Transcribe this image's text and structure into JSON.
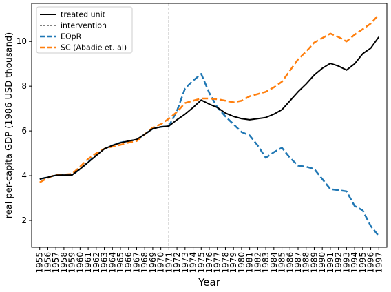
{
  "chart_data": {
    "type": "line",
    "xlabel": "Year",
    "ylabel": "real per-capita GDP (1986 USD thousand)",
    "xlim": [
      1954,
      1998
    ],
    "ylim": [
      0.8,
      11.7
    ],
    "yticks": [
      2,
      4,
      6,
      8,
      10
    ],
    "x": [
      1955,
      1956,
      1957,
      1958,
      1959,
      1960,
      1961,
      1962,
      1963,
      1964,
      1965,
      1966,
      1967,
      1968,
      1969,
      1970,
      1971,
      1972,
      1973,
      1974,
      1975,
      1976,
      1977,
      1978,
      1979,
      1980,
      1981,
      1982,
      1983,
      1984,
      1985,
      1986,
      1987,
      1988,
      1989,
      1990,
      1991,
      1992,
      1993,
      1994,
      1995,
      1996,
      1997
    ],
    "intervention_year": 1971,
    "legend_position": "top-left",
    "series": [
      {
        "name": "treated unit",
        "color": "#000000",
        "style": "solid",
        "values": [
          3.85,
          3.93,
          4.02,
          4.03,
          4.03,
          4.3,
          4.6,
          4.9,
          5.2,
          5.35,
          5.47,
          5.55,
          5.62,
          5.85,
          6.1,
          6.18,
          6.22,
          6.5,
          6.75,
          7.05,
          7.38,
          7.2,
          7.05,
          6.8,
          6.65,
          6.55,
          6.5,
          6.55,
          6.6,
          6.75,
          6.95,
          7.35,
          7.75,
          8.1,
          8.5,
          8.8,
          9.02,
          8.9,
          8.72,
          9.0,
          9.45,
          9.7,
          10.2
        ]
      },
      {
        "name": "intervention",
        "color": "#000000",
        "style": "dashed-thin"
      },
      {
        "name": "EOpR",
        "color": "#1f77b4",
        "style": "dashed",
        "values": [
          3.85,
          3.93,
          4.02,
          4.03,
          4.03,
          4.3,
          4.6,
          4.95,
          5.2,
          5.35,
          5.48,
          5.55,
          5.6,
          5.85,
          6.1,
          6.18,
          6.22,
          6.9,
          7.9,
          8.25,
          8.55,
          7.7,
          7.05,
          6.65,
          6.3,
          5.95,
          5.8,
          5.35,
          4.8,
          5.05,
          5.25,
          4.8,
          4.45,
          4.4,
          4.3,
          3.85,
          3.4,
          3.35,
          3.3,
          2.65,
          2.45,
          1.75,
          1.3
        ]
      },
      {
        "name": "SC (Abadie et. al)",
        "color": "#ff7f0e",
        "style": "dashed",
        "values": [
          3.7,
          3.9,
          4.05,
          4.05,
          4.08,
          4.4,
          4.75,
          5.0,
          5.2,
          5.3,
          5.38,
          5.48,
          5.55,
          5.85,
          6.15,
          6.3,
          6.55,
          6.85,
          7.25,
          7.35,
          7.45,
          7.45,
          7.42,
          7.35,
          7.28,
          7.35,
          7.55,
          7.65,
          7.75,
          7.95,
          8.2,
          8.7,
          9.2,
          9.55,
          9.95,
          10.15,
          10.35,
          10.2,
          10.0,
          10.3,
          10.55,
          10.8,
          11.2
        ]
      }
    ]
  }
}
